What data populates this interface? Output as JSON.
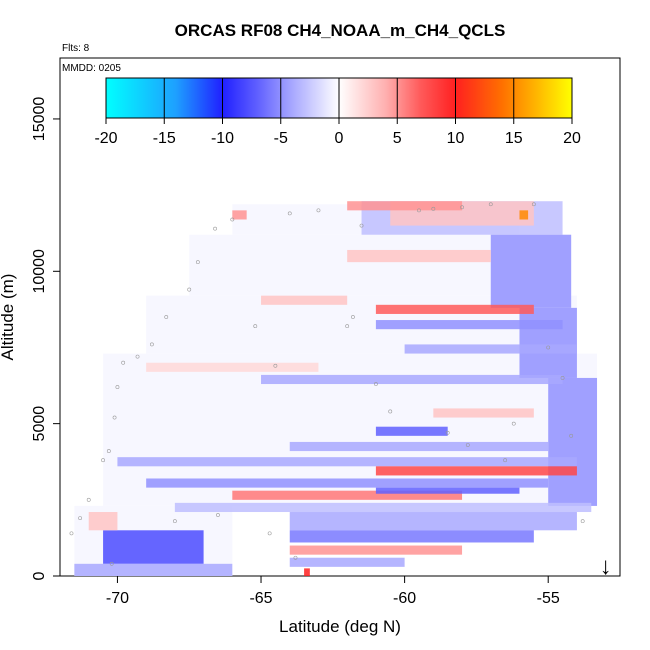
{
  "chart_data": {
    "type": "heatmap",
    "title": "ORCAS RF08 CH4_NOAA_m_CH4_QCLS",
    "flights_label": "Flts: 8",
    "date_label": "MMDD: 0205",
    "xlabel": "Latitude (deg N)",
    "ylabel": "Altitude (m)",
    "xlim": [
      -72,
      -52.5
    ],
    "ylim": [
      0,
      17000
    ],
    "x_ticks": [
      -70,
      -65,
      -60,
      -55
    ],
    "y_ticks": [
      0,
      5000,
      10000,
      15000
    ],
    "colorbar": {
      "range": [
        -20,
        20
      ],
      "ticks": [
        -20,
        -15,
        -10,
        -5,
        0,
        5,
        10,
        15,
        20
      ],
      "stops": [
        {
          "v": -20,
          "color": "#00ffff"
        },
        {
          "v": -14,
          "color": "#1ea0ff"
        },
        {
          "v": -10,
          "color": "#2020ff"
        },
        {
          "v": -7,
          "color": "#6060ff"
        },
        {
          "v": -4,
          "color": "#a8a8ff"
        },
        {
          "v": 0,
          "color": "#ffffff"
        },
        {
          "v": 4,
          "color": "#ffb0b0"
        },
        {
          "v": 7,
          "color": "#ff5a5a"
        },
        {
          "v": 10,
          "color": "#ff2020"
        },
        {
          "v": 14,
          "color": "#ff7000"
        },
        {
          "v": 20,
          "color": "#ffff00"
        }
      ]
    },
    "region_bands": [
      {
        "lat_min": -71.5,
        "lat_max": -66,
        "alt_min": 0,
        "alt_max": 2300
      },
      {
        "lat_min": -70.5,
        "lat_max": -53.3,
        "alt_min": 2300,
        "alt_max": 7300
      },
      {
        "lat_min": -69,
        "lat_max": -54,
        "alt_min": 7300,
        "alt_max": 9200
      },
      {
        "lat_min": -67.5,
        "lat_max": -54.2,
        "alt_min": 9200,
        "alt_max": 11200
      },
      {
        "lat_min": -66,
        "lat_max": -56,
        "alt_min": 11200,
        "alt_max": 12200
      }
    ],
    "anomaly_bands": [
      {
        "lat_min": -61.5,
        "lat_max": -54.5,
        "alt_min": 11200,
        "alt_max": 12300,
        "value": -3
      },
      {
        "lat_min": -57,
        "lat_max": -54.2,
        "alt_min": 8800,
        "alt_max": 11200,
        "value": -5
      },
      {
        "lat_min": -56,
        "lat_max": -54,
        "alt_min": 6500,
        "alt_max": 8800,
        "value": -5
      },
      {
        "lat_min": -55,
        "lat_max": -53.3,
        "alt_min": 2300,
        "alt_max": 6500,
        "value": -5
      },
      {
        "lat_min": -60.5,
        "lat_max": -55.5,
        "alt_min": 11500,
        "alt_max": 12300,
        "value": 3
      },
      {
        "lat_min": -62,
        "lat_max": -58,
        "alt_min": 12000,
        "alt_max": 12300,
        "value": 5
      },
      {
        "lat_min": -66,
        "lat_max": -65.5,
        "alt_min": 11700,
        "alt_max": 12000,
        "value": 5
      },
      {
        "lat_min": -62,
        "lat_max": -57,
        "alt_min": 10300,
        "alt_max": 10700,
        "value": 3
      },
      {
        "lat_min": -65,
        "lat_max": -62,
        "alt_min": 8900,
        "alt_max": 9200,
        "value": 3
      },
      {
        "lat_min": -61,
        "lat_max": -55.5,
        "alt_min": 8600,
        "alt_max": 8900,
        "value": 7
      },
      {
        "lat_min": -61,
        "lat_max": -54.5,
        "alt_min": 8100,
        "alt_max": 8400,
        "value": -5
      },
      {
        "lat_min": -60,
        "lat_max": -54,
        "alt_min": 7300,
        "alt_max": 7600,
        "value": -4
      },
      {
        "lat_min": -65,
        "lat_max": -54.5,
        "alt_min": 6300,
        "alt_max": 6600,
        "value": -4
      },
      {
        "lat_min": -69,
        "lat_max": -63,
        "alt_min": 6700,
        "alt_max": 7000,
        "value": 2
      },
      {
        "lat_min": -59,
        "lat_max": -55.5,
        "alt_min": 5200,
        "alt_max": 5500,
        "value": 3
      },
      {
        "lat_min": -61,
        "lat_max": -58.5,
        "alt_min": 4600,
        "alt_max": 4900,
        "value": -7
      },
      {
        "lat_min": -64,
        "lat_max": -55,
        "alt_min": 4100,
        "alt_max": 4400,
        "value": -4
      },
      {
        "lat_min": -70,
        "lat_max": -54,
        "alt_min": 3600,
        "alt_max": 3900,
        "value": -4
      },
      {
        "lat_min": -61,
        "lat_max": -54,
        "alt_min": 3300,
        "alt_max": 3600,
        "value": 8
      },
      {
        "lat_min": -69,
        "lat_max": -55,
        "alt_min": 2900,
        "alt_max": 3200,
        "value": -5
      },
      {
        "lat_min": -66,
        "lat_max": -58,
        "alt_min": 2500,
        "alt_max": 2800,
        "value": 6
      },
      {
        "lat_min": -61,
        "lat_max": -56,
        "alt_min": 2700,
        "alt_max": 2900,
        "value": -7
      },
      {
        "lat_min": -68,
        "lat_max": -53.5,
        "alt_min": 2100,
        "alt_max": 2400,
        "value": -3
      },
      {
        "lat_min": -64,
        "lat_max": -54,
        "alt_min": 1500,
        "alt_max": 2100,
        "value": -4
      },
      {
        "lat_min": -64,
        "lat_max": -55.5,
        "alt_min": 1100,
        "alt_max": 1500,
        "value": -6
      },
      {
        "lat_min": -64,
        "lat_max": -58,
        "alt_min": 700,
        "alt_max": 1000,
        "value": 5
      },
      {
        "lat_min": -64,
        "lat_max": -60,
        "alt_min": 300,
        "alt_max": 600,
        "value": -4
      },
      {
        "lat_min": -70.5,
        "lat_max": -67,
        "alt_min": 400,
        "alt_max": 1500,
        "value": -8
      },
      {
        "lat_min": -71.5,
        "lat_max": -66,
        "alt_min": 0,
        "alt_max": 400,
        "value": -4
      },
      {
        "lat_min": -71,
        "lat_max": -70,
        "alt_min": 1500,
        "alt_max": 2100,
        "value": 3
      },
      {
        "lat_min": -63.5,
        "lat_max": -63.3,
        "alt_min": 0,
        "alt_max": 250,
        "value": 10
      },
      {
        "lat_min": -56,
        "lat_max": -55.7,
        "alt_min": 11700,
        "alt_max": 12000,
        "value": 15
      }
    ],
    "flight_points": [
      [
        -71.6,
        1400
      ],
      [
        -71.3,
        1900
      ],
      [
        -71,
        2500
      ],
      [
        -70.5,
        3800
      ],
      [
        -70.3,
        4100
      ],
      [
        -70.1,
        5200
      ],
      [
        -70,
        6200
      ],
      [
        -69.8,
        7000
      ],
      [
        -69.3,
        7200
      ],
      [
        -68.8,
        7600
      ],
      [
        -68.3,
        8500
      ],
      [
        -67.5,
        9400
      ],
      [
        -67.2,
        10300
      ],
      [
        -66.6,
        11400
      ],
      [
        -66,
        11700
      ],
      [
        -65.2,
        8200
      ],
      [
        -64.5,
        6900
      ],
      [
        -64,
        11900
      ],
      [
        -63,
        12000
      ],
      [
        -62,
        8200
      ],
      [
        -61.8,
        8500
      ],
      [
        -61.5,
        11500
      ],
      [
        -61,
        6300
      ],
      [
        -60.5,
        5400
      ],
      [
        -59.5,
        12000
      ],
      [
        -58.5,
        4700
      ],
      [
        -58,
        12100
      ],
      [
        -57,
        12200
      ],
      [
        -56.5,
        3800
      ],
      [
        -56.2,
        5000
      ],
      [
        -55.5,
        12200
      ],
      [
        -55,
        7500
      ],
      [
        -54.5,
        6500
      ],
      [
        -53.8,
        1800
      ],
      [
        -70.2,
        400
      ],
      [
        -68,
        1800
      ],
      [
        -66.5,
        2000
      ],
      [
        -64.7,
        1400
      ],
      [
        -63.8,
        600
      ],
      [
        -59,
        12050
      ],
      [
        -57.8,
        4300
      ],
      [
        -54.2,
        4600
      ]
    ],
    "arrow_marker": {
      "lat": -53,
      "label": "↓"
    }
  }
}
